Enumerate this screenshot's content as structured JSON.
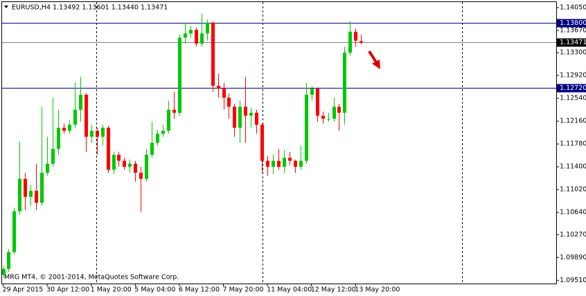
{
  "chart_data": {
    "type": "candlestick",
    "header": "EURUSD,H4  1.13492 1.13601 1.13440 1.13471",
    "footer": "MRG MT4, © 2001-2014, MetaQuotes Software Corp.",
    "up_color": "#00c800",
    "down_color": "#ff0000",
    "categories": [
      "29 Apr 2015",
      null,
      null,
      null,
      null,
      null,
      null,
      null,
      "30 Apr 12:00",
      null,
      null,
      null,
      null,
      null,
      null,
      null,
      "1 May 20:00",
      null,
      null,
      null,
      null,
      null,
      null,
      null,
      "5 May 04:00",
      null,
      null,
      null,
      null,
      null,
      null,
      null,
      "6 May 12:00",
      null,
      null,
      null,
      null,
      null,
      null,
      null,
      "7 May 20:00",
      null,
      null,
      null,
      null,
      null,
      null,
      null,
      "11 May 04:00",
      null,
      null,
      null,
      null,
      null,
      null,
      null,
      "12 May 12:00",
      null,
      null,
      null,
      null,
      null,
      null,
      null,
      "13 May 20:00",
      null
    ],
    "open": [
      1.096,
      1.097,
      1.0998,
      1.1066,
      1.112,
      1.109,
      1.11,
      1.108,
      1.113,
      1.1145,
      1.117,
      1.1205,
      1.12,
      1.121,
      1.1235,
      1.126,
      1.119,
      1.12,
      1.119,
      1.1205,
      1.1135,
      1.116,
      1.115,
      1.114,
      1.1145,
      1.113,
      1.112,
      1.116,
      1.118,
      1.1195,
      1.12,
      1.1235,
      1.123,
      1.1355,
      1.1362,
      1.1368,
      1.1345,
      1.1362,
      1.138,
      1.1275,
      1.127,
      1.1255,
      1.124,
      1.1205,
      1.124,
      1.1225,
      1.123,
      1.121,
      1.115,
      1.114,
      1.115,
      1.114,
      1.1155,
      1.115,
      1.114,
      1.115,
      1.126,
      1.127,
      1.1225,
      1.122,
      1.122,
      1.124,
      1.123,
      1.133,
      1.1365,
      1.13492
    ],
    "high": [
      1.0975,
      1.1003,
      1.1072,
      1.1182,
      1.113,
      1.111,
      1.1145,
      1.124,
      1.119,
      1.1255,
      1.1235,
      1.1212,
      1.1218,
      1.128,
      1.129,
      1.1262,
      1.121,
      1.1205,
      1.121,
      1.1208,
      1.1165,
      1.1165,
      1.1155,
      1.1152,
      1.115,
      1.114,
      1.117,
      1.1215,
      1.1202,
      1.121,
      1.125,
      1.1265,
      1.136,
      1.138,
      1.1375,
      1.1372,
      1.1395,
      1.1385,
      1.1382,
      1.1295,
      1.128,
      1.1262,
      1.1245,
      1.125,
      1.129,
      1.1238,
      1.1235,
      1.1212,
      1.1158,
      1.116,
      1.117,
      1.1168,
      1.1165,
      1.1152,
      1.1175,
      1.128,
      1.1275,
      1.1272,
      1.1232,
      1.123,
      1.1255,
      1.1245,
      1.134,
      1.1382,
      1.137,
      1.13601
    ],
    "low": [
      1.0955,
      1.0965,
      1.0994,
      1.106,
      1.1068,
      1.1075,
      1.1068,
      1.1075,
      1.1125,
      1.114,
      1.116,
      1.1195,
      1.1195,
      1.1205,
      1.1215,
      1.1165,
      1.118,
      1.116,
      1.1175,
      1.113,
      1.1128,
      1.114,
      1.1135,
      1.113,
      1.1115,
      1.1065,
      1.1115,
      1.1155,
      1.1175,
      1.119,
      1.1195,
      1.122,
      1.1225,
      1.1345,
      1.1355,
      1.134,
      1.134,
      1.135,
      1.1265,
      1.1255,
      1.1235,
      1.122,
      1.119,
      1.118,
      1.118,
      1.1205,
      1.1195,
      1.113,
      1.1125,
      1.1128,
      1.1135,
      1.113,
      1.1142,
      1.113,
      1.1135,
      1.1145,
      1.125,
      1.1215,
      1.1212,
      1.1215,
      1.1215,
      1.12,
      1.121,
      1.1325,
      1.134,
      1.1344
    ],
    "close": [
      1.097,
      1.0998,
      1.1066,
      1.112,
      1.109,
      1.11,
      1.108,
      1.113,
      1.1145,
      1.117,
      1.1205,
      1.12,
      1.121,
      1.1235,
      1.126,
      1.119,
      1.12,
      1.119,
      1.1205,
      1.1135,
      1.116,
      1.115,
      1.114,
      1.1145,
      1.113,
      1.112,
      1.116,
      1.118,
      1.1195,
      1.12,
      1.1235,
      1.123,
      1.1355,
      1.1362,
      1.1368,
      1.1345,
      1.1362,
      1.138,
      1.1275,
      1.127,
      1.1255,
      1.124,
      1.1205,
      1.124,
      1.1225,
      1.123,
      1.121,
      1.115,
      1.114,
      1.115,
      1.114,
      1.1155,
      1.115,
      1.114,
      1.115,
      1.126,
      1.127,
      1.1225,
      1.122,
      1.122,
      1.124,
      1.123,
      1.133,
      1.1365,
      1.135,
      1.13471
    ],
    "ylim": [
      1.09456,
      1.14154
    ],
    "yticks": [
      {
        "value": 1.1405,
        "label": "1.14050"
      },
      {
        "value": 1.1367,
        "label": "1.13670"
      },
      {
        "value": 1.133,
        "label": "1.13300"
      },
      {
        "value": 1.1292,
        "label": "1.12920"
      },
      {
        "value": 1.1254,
        "label": "1.12540"
      },
      {
        "value": 1.1216,
        "label": "1.12160"
      },
      {
        "value": 1.1178,
        "label": "1.11780"
      },
      {
        "value": 1.114,
        "label": "1.11400"
      },
      {
        "value": 1.1102,
        "label": "1.11020"
      },
      {
        "value": 1.1064,
        "label": "1.10640"
      },
      {
        "value": 1.1027,
        "label": "1.10270"
      },
      {
        "value": 1.0989,
        "label": "1.09890"
      },
      {
        "value": 1.0951,
        "label": "1.09510"
      }
    ],
    "levels": [
      {
        "value": 1.138,
        "label": "1.13800",
        "color": "#000080"
      },
      {
        "value": 1.13471,
        "label": "1.13471",
        "color": "#808080"
      },
      {
        "value": 1.1272,
        "label": "1.12720",
        "color": "#000080"
      }
    ]
  }
}
